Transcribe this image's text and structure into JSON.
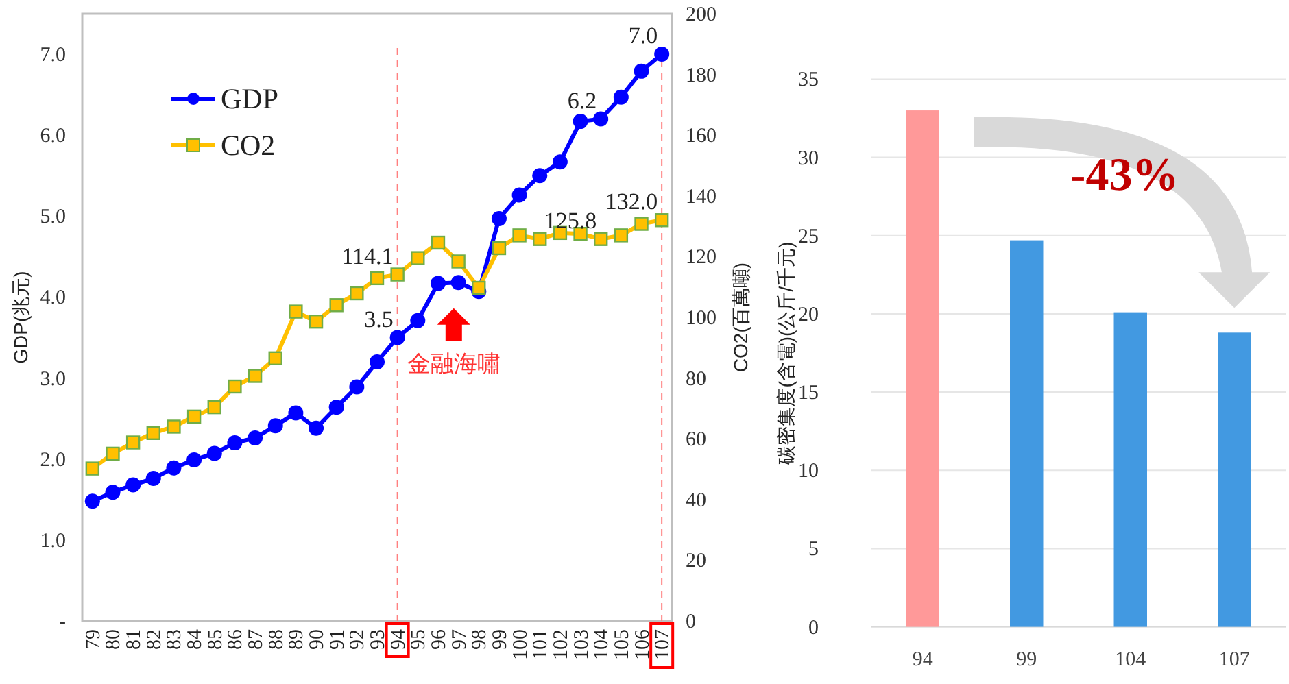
{
  "chart_data": [
    {
      "type": "line",
      "categories": [
        "79",
        "80",
        "81",
        "82",
        "83",
        "84",
        "85",
        "86",
        "87",
        "88",
        "89",
        "90",
        "91",
        "92",
        "93",
        "94",
        "95",
        "96",
        "97",
        "98",
        "99",
        "100",
        "101",
        "102",
        "103",
        "104",
        "105",
        "106",
        "107"
      ],
      "series": [
        {
          "name": "GDP",
          "color": "#0000ff",
          "marker": "circle",
          "values": [
            1.48,
            1.59,
            1.68,
            1.76,
            1.89,
            1.99,
            2.07,
            2.2,
            2.26,
            2.41,
            2.57,
            2.38,
            2.64,
            2.89,
            3.2,
            3.5,
            3.71,
            4.17,
            4.18,
            4.07,
            4.97,
            5.26,
            5.5,
            5.67,
            6.17,
            6.2,
            6.47,
            6.79,
            7.0
          ],
          "value_labels": [
            null,
            null,
            null,
            null,
            null,
            null,
            null,
            null,
            null,
            null,
            null,
            null,
            null,
            null,
            null,
            "3.5",
            null,
            null,
            null,
            null,
            null,
            null,
            null,
            null,
            null,
            "6.2",
            null,
            null,
            "7.0"
          ]
        },
        {
          "name": "CO2",
          "color": "#ffc000",
          "marker": "square",
          "axis": "y2",
          "values": [
            50.2,
            55.1,
            58.8,
            61.9,
            64.0,
            67.3,
            70.4,
            77.2,
            80.7,
            86.5,
            101.9,
            98.6,
            104.0,
            107.9,
            112.9,
            114.1,
            119.5,
            124.6,
            118.4,
            109.7,
            122.8,
            127.0,
            125.8,
            127.8,
            127.5,
            125.8,
            127.0,
            130.8,
            132.0
          ],
          "value_labels": [
            null,
            null,
            null,
            null,
            null,
            null,
            null,
            null,
            null,
            null,
            null,
            null,
            null,
            null,
            null,
            "114.1",
            null,
            null,
            null,
            null,
            null,
            null,
            null,
            null,
            null,
            "125.8",
            null,
            null,
            "132.0"
          ]
        }
      ],
      "ylabel": "GDP(兆元)",
      "y2label": "CO2(百萬噸)",
      "ylim": [
        0,
        7.5
      ],
      "yticks": [
        {
          "value": 0,
          "label": "-"
        },
        {
          "value": 1,
          "label": "1.0"
        },
        {
          "value": 2,
          "label": "2.0"
        },
        {
          "value": 3,
          "label": "3.0"
        },
        {
          "value": 4,
          "label": "4.0"
        },
        {
          "value": 5,
          "label": "5.0"
        },
        {
          "value": 6,
          "label": "6.0"
        },
        {
          "value": 7,
          "label": "7.0"
        }
      ],
      "y2lim": [
        0,
        200
      ],
      "y2ticks": [
        0,
        20,
        40,
        60,
        80,
        100,
        120,
        140,
        160,
        180,
        200
      ],
      "ref_lines": [
        {
          "axis": "x",
          "value": "94",
          "color": "#ff8080",
          "line_style": "dashed"
        },
        {
          "axis": "x",
          "value": "107",
          "color": "#ff8080",
          "line_style": "dashed"
        }
      ],
      "annotations": [
        "金融海嘯"
      ],
      "legend": "top left",
      "grid": false
    },
    {
      "type": "bar",
      "categories": [
        "94",
        "99",
        "104",
        "107"
      ],
      "values": [
        33.0,
        24.7,
        20.1,
        18.8
      ],
      "colors": [
        "#ff9999",
        "#4299e1",
        "#4299e1",
        "#4299e1"
      ],
      "ylabel": "碳密集度(含電)(公斤/千元)",
      "ylim": [
        0,
        35
      ],
      "yticks": [
        0,
        5,
        10,
        15,
        20,
        25,
        30,
        35
      ],
      "annotations": [
        "-43%"
      ],
      "grid": "y"
    }
  ]
}
